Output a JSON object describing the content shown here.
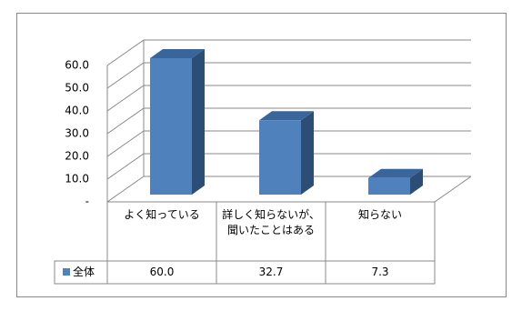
{
  "chart_data": {
    "type": "bar3d",
    "categories": [
      "よく知っている",
      "詳しく知らないが、聞いたことはある",
      "知らない"
    ],
    "series": [
      {
        "name": "全体",
        "color": "#4f81bd",
        "values": [
          60.0,
          32.7,
          7.3
        ],
        "value_labels": [
          "60.0",
          "32.7",
          "7.3"
        ]
      }
    ],
    "ylim": [
      0,
      60
    ],
    "yticks": [
      {
        "value": 0,
        "label": "-"
      },
      {
        "value": 10,
        "label": "10.0"
      },
      {
        "value": 20,
        "label": "20.0"
      },
      {
        "value": 30,
        "label": "30.0"
      },
      {
        "value": 40,
        "label": "40.0"
      },
      {
        "value": 50,
        "label": "50.0"
      },
      {
        "value": 60,
        "label": "60.0"
      }
    ],
    "grid": true
  }
}
